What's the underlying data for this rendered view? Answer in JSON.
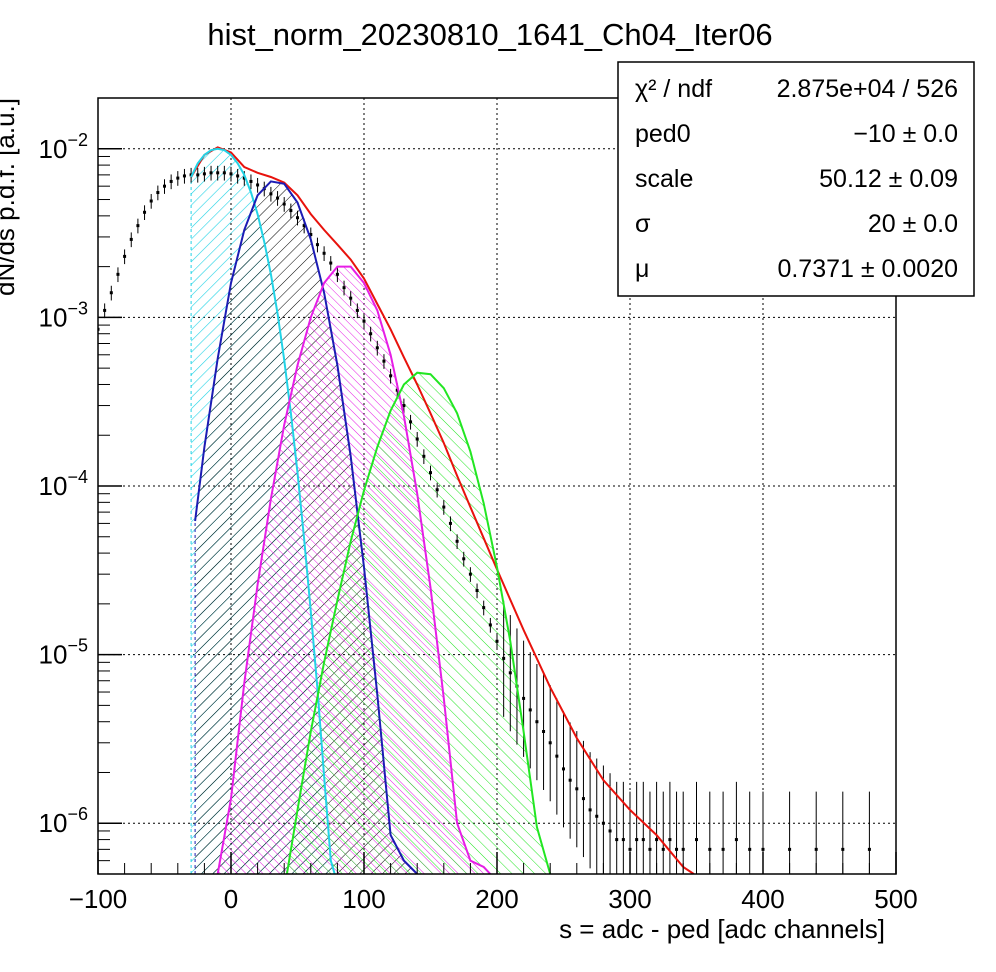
{
  "chart_data": {
    "type": "line",
    "title": "hist_norm_20230810_1641_Ch04_Iter06",
    "xlabel": "s = adc - ped [adc channels]",
    "ylabel": "dN/ds p.d.f. [a.u.]",
    "xlim": [
      -100,
      500
    ],
    "ylim": [
      5e-07,
      0.02
    ],
    "yscale": "log",
    "grid": true,
    "x_ticks": [
      "−100",
      "0",
      "100",
      "200",
      "300",
      "400",
      "500"
    ],
    "y_ticks": [
      {
        "base": "10",
        "exp": "−2",
        "value": 0.01
      },
      {
        "base": "10",
        "exp": "−3",
        "value": 0.001
      },
      {
        "base": "10",
        "exp": "−4",
        "value": 0.0001
      },
      {
        "base": "10",
        "exp": "−5",
        "value": 1e-05
      },
      {
        "base": "10",
        "exp": "−6",
        "value": 1e-06
      }
    ],
    "stats_box": {
      "rows": [
        {
          "label": "χ² / ndf",
          "value": "2.875e+04 / 526"
        },
        {
          "label": "ped0",
          "value": "−10 ± 0.0"
        },
        {
          "label": "scale",
          "value": "50.12 ± 0.09"
        },
        {
          "label": "σ",
          "value": "20 ± 0.0"
        },
        {
          "label": "μ",
          "value": "0.7371 ± 0.0020"
        }
      ]
    },
    "series": [
      {
        "kind": "histogram-points",
        "color": "#000000",
        "x": [
          -100,
          -95,
          -90,
          -85,
          -80,
          -75,
          -70,
          -65,
          -60,
          -55,
          -50,
          -45,
          -40,
          -35,
          -30,
          -25,
          -20,
          -15,
          -10,
          -5,
          0,
          5,
          10,
          15,
          20,
          25,
          30,
          35,
          40,
          45,
          50,
          55,
          60,
          65,
          70,
          75,
          80,
          85,
          90,
          95,
          100,
          105,
          110,
          115,
          120,
          125,
          130,
          135,
          140,
          145,
          150,
          155,
          160,
          165,
          170,
          175,
          180,
          185,
          190,
          195,
          200,
          205,
          210,
          215,
          220,
          225,
          230,
          235,
          240,
          245,
          250,
          255,
          260,
          265,
          270,
          275,
          280,
          285,
          290,
          295,
          300,
          305,
          310,
          315,
          320,
          325,
          330,
          335,
          340,
          350,
          360,
          370,
          380,
          390,
          400,
          420,
          440,
          460,
          480
        ],
        "y": [
          0.00085,
          0.0011,
          0.0014,
          0.0018,
          0.0023,
          0.0029,
          0.0035,
          0.0042,
          0.0049,
          0.0055,
          0.006,
          0.0064,
          0.0067,
          0.0069,
          0.007,
          0.007,
          0.0071,
          0.0072,
          0.0072,
          0.0072,
          0.0071,
          0.0069,
          0.0067,
          0.0064,
          0.0061,
          0.0058,
          0.0054,
          0.0051,
          0.0047,
          0.0043,
          0.0039,
          0.0035,
          0.0031,
          0.0027,
          0.0024,
          0.0021,
          0.0018,
          0.0015,
          0.0013,
          0.0011,
          0.00095,
          0.0008,
          0.00066,
          0.00055,
          0.00045,
          0.00037,
          0.0003,
          0.00024,
          0.00019,
          0.00015,
          0.00012,
          9.5e-05,
          7.5e-05,
          6e-05,
          4.7e-05,
          3.7e-05,
          3e-05,
          2.4e-05,
          1.9e-05,
          1.5e-05,
          1.2e-05,
          9.5e-06,
          7.8e-06,
          6.5e-06,
          5.5e-06,
          4.7e-06,
          4e-06,
          3.5e-06,
          3e-06,
          2.5e-06,
          2.1e-06,
          1.8e-06,
          1.6e-06,
          1.4e-06,
          1.2e-06,
          1.1e-06,
          1e-06,
          9e-07,
          8e-07,
          8e-07,
          7e-07,
          8e-07,
          8e-07,
          7e-07,
          8e-07,
          7e-07,
          8e-07,
          7e-07,
          7e-07,
          8e-07,
          7e-07,
          7e-07,
          8e-07,
          7e-07,
          7e-07,
          7e-07,
          7e-07,
          7e-07,
          7e-07
        ]
      },
      {
        "kind": "total-fit",
        "color": "#e8120c",
        "x": [
          -30,
          -20,
          -10,
          0,
          10,
          20,
          30,
          40,
          50,
          60,
          70,
          80,
          90,
          100,
          110,
          120,
          130,
          140,
          150,
          160,
          170,
          180,
          190,
          200,
          220,
          240,
          260,
          280,
          300,
          320,
          340,
          348
        ],
        "y": [
          0.0068,
          0.0092,
          0.0102,
          0.0095,
          0.0078,
          0.0072,
          0.0068,
          0.0063,
          0.0053,
          0.0041,
          0.0033,
          0.0027,
          0.0022,
          0.0017,
          0.0012,
          0.00085,
          0.00058,
          0.0004,
          0.00027,
          0.00018,
          0.000115,
          7.5e-05,
          4.9e-05,
          3.2e-05,
          1.4e-05,
          6.4e-06,
          3.2e-06,
          1.8e-06,
          1.2e-06,
          8.5e-07,
          5.5e-07,
          5e-07
        ]
      },
      {
        "kind": "component",
        "color": "#22d3e6",
        "hatch": "cyan",
        "x": [
          -30,
          -25,
          -20,
          -15,
          -10,
          -5,
          0,
          5,
          10,
          15,
          20,
          25,
          30,
          35,
          40,
          45,
          50,
          55,
          60,
          65,
          70,
          75,
          78
        ],
        "y": [
          0.0068,
          0.0082,
          0.0092,
          0.0098,
          0.01,
          0.0098,
          0.0092,
          0.0082,
          0.007,
          0.0055,
          0.0041,
          0.0028,
          0.0018,
          0.00105,
          0.00056,
          0.00027,
          0.00012,
          4.8e-05,
          1.8e-05,
          6.2e-06,
          1.9e-06,
          6e-07,
          5e-07
        ]
      },
      {
        "kind": "component",
        "color": "#1c1cb4",
        "hatch": "black",
        "x": [
          -27,
          -20,
          -10,
          0,
          10,
          20,
          30,
          40,
          50,
          60,
          70,
          80,
          90,
          100,
          110,
          120,
          130,
          140
        ],
        "y": [
          6.2e-05,
          0.00017,
          0.00057,
          0.0016,
          0.0033,
          0.0053,
          0.0064,
          0.0062,
          0.0048,
          0.0029,
          0.0014,
          0.00052,
          0.00015,
          3.3e-05,
          5.8e-06,
          8.5e-07,
          6e-07,
          5e-07
        ]
      },
      {
        "kind": "component",
        "color": "#e61ee6",
        "hatch": "magenta",
        "x": [
          -10,
          0,
          10,
          20,
          30,
          40,
          50,
          60,
          70,
          80,
          90,
          100,
          110,
          120,
          130,
          140,
          150,
          160,
          170,
          180,
          190,
          195
        ],
        "y": [
          5e-07,
          1.4e-06,
          6.8e-06,
          2.6e-05,
          8.4e-05,
          0.00023,
          0.00052,
          0.001,
          0.0016,
          0.002,
          0.002,
          0.0016,
          0.0011,
          0.0006,
          0.00026,
          9e-05,
          2.5e-05,
          5.5e-06,
          1e-06,
          6e-07,
          5.5e-07,
          5e-07
        ]
      },
      {
        "kind": "component",
        "color": "#22e622",
        "hatch": "green",
        "x": [
          42,
          50,
          60,
          70,
          80,
          90,
          100,
          110,
          120,
          130,
          140,
          150,
          160,
          170,
          180,
          190,
          200,
          210,
          220,
          230,
          240
        ],
        "y": [
          5e-07,
          1.2e-06,
          3.5e-06,
          9e-06,
          2.1e-05,
          4.7e-05,
          9.4e-05,
          0.00017,
          0.00028,
          0.0004,
          0.00047,
          0.00046,
          0.00038,
          0.00027,
          0.00016,
          7.9e-05,
          3.3e-05,
          1.2e-05,
          3.5e-06,
          9.5e-07,
          5e-07
        ]
      }
    ]
  }
}
